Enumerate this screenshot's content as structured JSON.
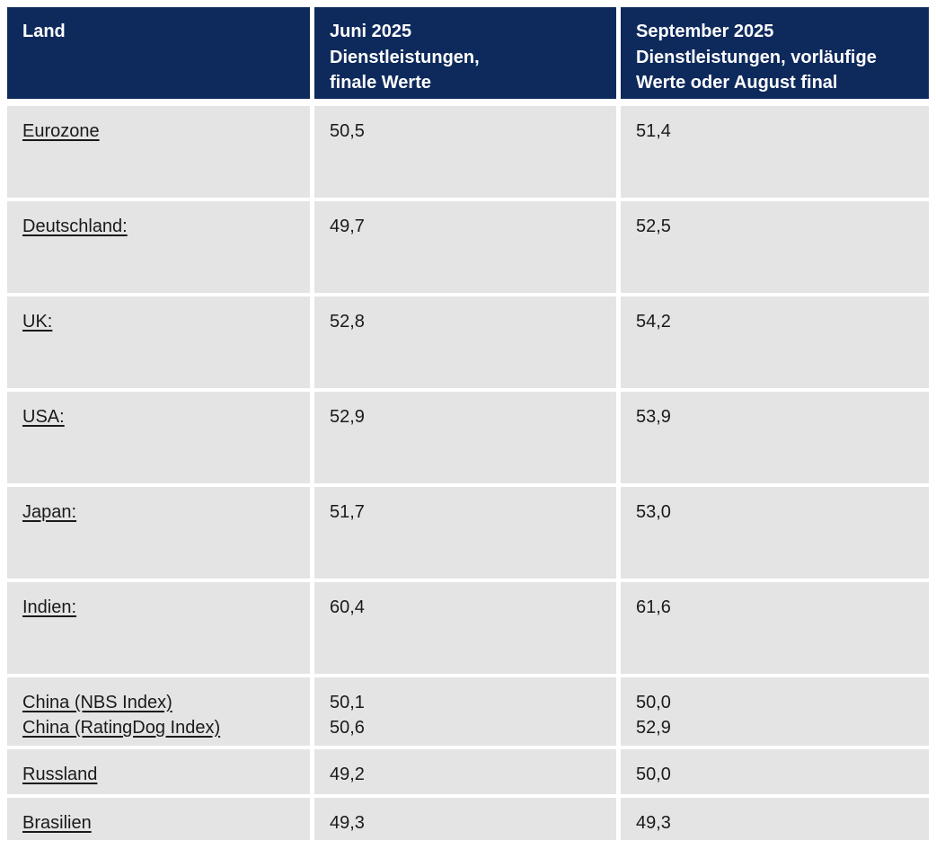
{
  "table": {
    "headers": [
      {
        "label": "Land"
      },
      {
        "label": "Juni 2025\nDienstleistungen,\nfinale Werte"
      },
      {
        "label": "September 2025\nDienstleistungen, vorläufige\nWerte oder August final"
      }
    ],
    "rows": [
      {
        "land": [
          "Eurozone"
        ],
        "juni_2025": [
          "50,5"
        ],
        "september_2025": [
          "51,4"
        ]
      },
      {
        "land": [
          "Deutschland:"
        ],
        "juni_2025": [
          "49,7"
        ],
        "september_2025": [
          "52,5"
        ]
      },
      {
        "land": [
          "UK:"
        ],
        "juni_2025": [
          "52,8"
        ],
        "september_2025": [
          "54,2"
        ]
      },
      {
        "land": [
          "USA:"
        ],
        "juni_2025": [
          "52,9"
        ],
        "september_2025": [
          "53,9"
        ]
      },
      {
        "land": [
          "Japan:"
        ],
        "juni_2025": [
          "51,7"
        ],
        "september_2025": [
          "53,0"
        ]
      },
      {
        "land": [
          "Indien:"
        ],
        "juni_2025": [
          "60,4"
        ],
        "september_2025": [
          "61,6"
        ]
      },
      {
        "land": [
          "China (NBS Index)",
          "China (RatingDog Index)"
        ],
        "juni_2025": [
          "50,1",
          "50,6"
        ],
        "september_2025": [
          "50,0",
          "52,9"
        ]
      },
      {
        "land": [
          "Russland"
        ],
        "juni_2025": [
          "49,2"
        ],
        "september_2025": [
          "50,0"
        ]
      },
      {
        "land": [
          "Brasilien"
        ],
        "juni_2025": [
          "49,3"
        ],
        "september_2025": [
          "49,3"
        ]
      }
    ]
  },
  "colors": {
    "header_bg": "#0e2a5c",
    "row_bg": "#e4e4e4",
    "header_text": "#ffffff",
    "body_text": "#1a1a1a"
  }
}
